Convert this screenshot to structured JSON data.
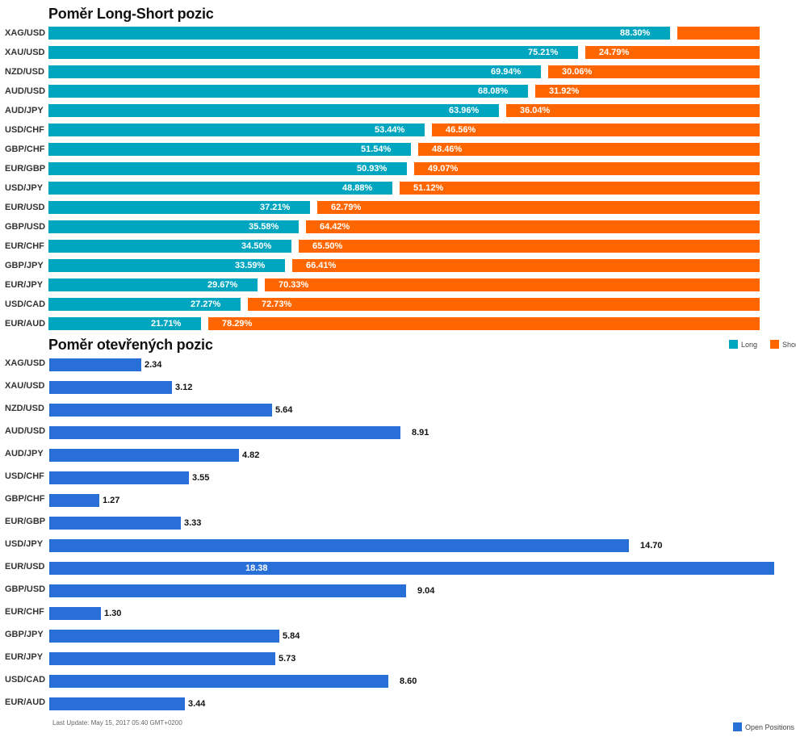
{
  "colors": {
    "long": "#00A5BF",
    "short": "#FF6600",
    "open": "#2870D8"
  },
  "chart_data": [
    {
      "type": "bar",
      "orientation": "horizontal",
      "stacked": true,
      "title": "Poměr Long-Short pozic",
      "categories": [
        "XAG/USD",
        "XAU/USD",
        "NZD/USD",
        "AUD/USD",
        "AUD/JPY",
        "USD/CHF",
        "GBP/CHF",
        "EUR/GBP",
        "USD/JPY",
        "EUR/USD",
        "GBP/USD",
        "EUR/CHF",
        "GBP/JPY",
        "EUR/JPY",
        "USD/CAD",
        "EUR/AUD"
      ],
      "series": [
        {
          "name": "Long",
          "values": [
            88.3,
            75.21,
            69.94,
            68.08,
            63.96,
            53.44,
            51.54,
            50.93,
            48.88,
            37.21,
            35.58,
            34.5,
            33.59,
            29.67,
            27.27,
            21.71
          ],
          "labels": [
            "88.30%",
            "75.21%",
            "69.94%",
            "68.08%",
            "63.96%",
            "53.44%",
            "51.54%",
            "50.93%",
            "48.88%",
            "37.21%",
            "35.58%",
            "34.50%",
            "33.59%",
            "29.67%",
            "27.27%",
            "21.71%"
          ]
        },
        {
          "name": "Short",
          "values": [
            11.7,
            24.79,
            30.06,
            31.92,
            36.04,
            46.56,
            48.46,
            49.07,
            51.12,
            62.79,
            64.42,
            65.5,
            66.41,
            70.33,
            72.73,
            78.29
          ],
          "labels": [
            "",
            "24.79%",
            "30.06%",
            "31.92%",
            "36.04%",
            "46.56%",
            "48.46%",
            "49.07%",
            "51.12%",
            "62.79%",
            "64.42%",
            "65.50%",
            "66.41%",
            "70.33%",
            "72.73%",
            "78.29%"
          ]
        }
      ],
      "xlim": [
        0,
        100
      ],
      "legend": {
        "position": "bottom-right",
        "items": [
          "Long",
          "Short"
        ]
      }
    },
    {
      "type": "bar",
      "orientation": "horizontal",
      "title": "Poměr otevřených pozic",
      "categories": [
        "XAG/USD",
        "XAU/USD",
        "NZD/USD",
        "AUD/USD",
        "AUD/JPY",
        "USD/CHF",
        "GBP/CHF",
        "EUR/GBP",
        "USD/JPY",
        "EUR/USD",
        "GBP/USD",
        "EUR/CHF",
        "GBP/JPY",
        "EUR/JPY",
        "USD/CAD",
        "EUR/AUD"
      ],
      "values": [
        2.34,
        3.12,
        5.64,
        8.91,
        4.82,
        3.55,
        1.27,
        3.33,
        14.7,
        18.38,
        9.04,
        1.3,
        5.84,
        5.73,
        8.6,
        3.44
      ],
      "labels": [
        "2.34",
        "3.12",
        "5.64",
        "8.91",
        "4.82",
        "3.55",
        "1.27",
        "3.33",
        "14.70",
        "18.38",
        "9.04",
        "1.30",
        "5.84",
        "5.73",
        "8.60",
        "3.44"
      ],
      "xlim": [
        0,
        18.38
      ],
      "legend": {
        "position": "bottom-right",
        "items": [
          "Open Positions"
        ]
      }
    }
  ],
  "footer": {
    "last_update": "Last Update: May 15, 2017 05:40 GMT+0200"
  }
}
